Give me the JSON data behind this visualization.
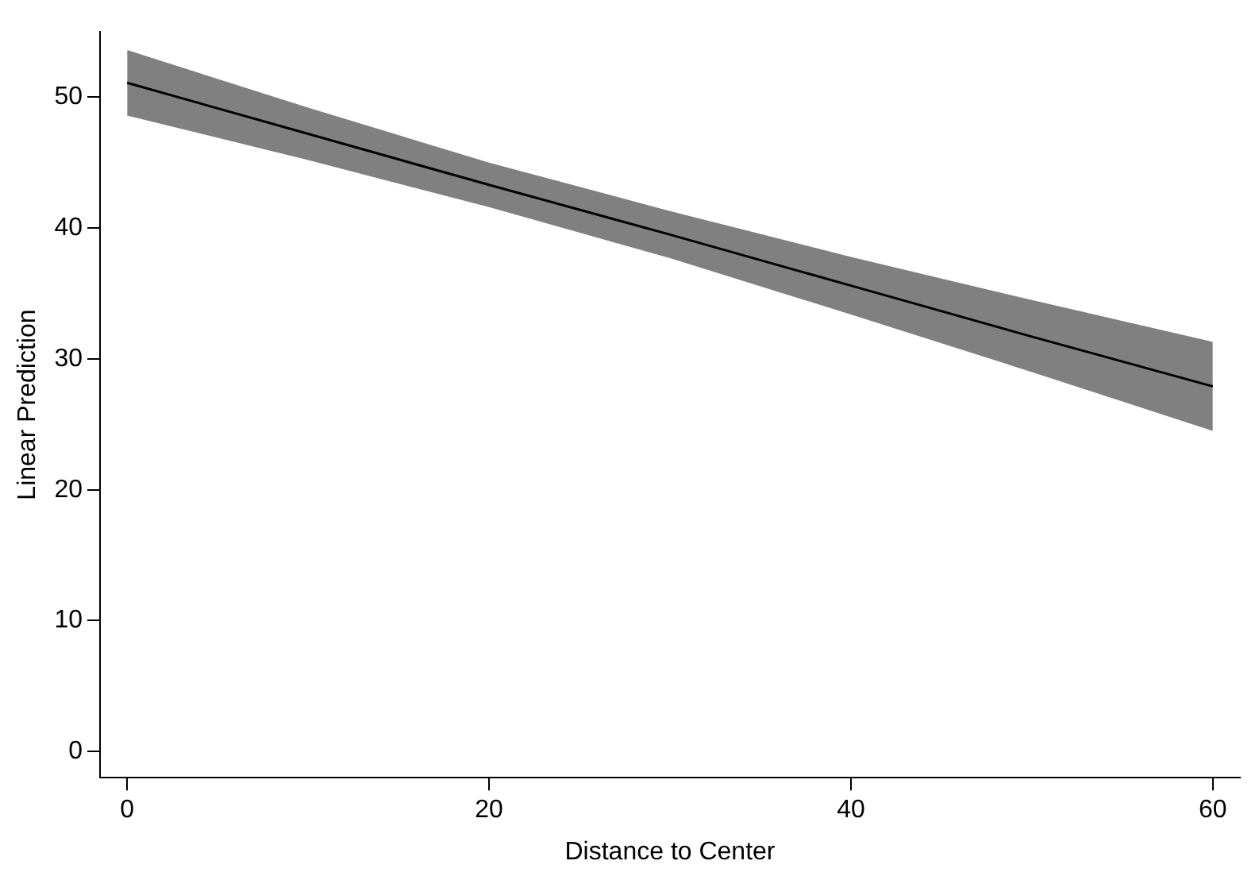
{
  "chart_data": {
    "type": "line",
    "xlabel": "Distance to Center",
    "ylabel": "Linear Prediction",
    "x": [
      0,
      10,
      20,
      30,
      40,
      50,
      60
    ],
    "series": [
      {
        "color": "#000000",
        "values": [
          51.1,
          47.2,
          43.3,
          39.5,
          35.6,
          31.7,
          27.9
        ],
        "lower": [
          48.6,
          45.2,
          41.6,
          37.7,
          33.4,
          29.0,
          24.5
        ],
        "upper": [
          53.6,
          49.2,
          45.0,
          41.3,
          37.8,
          34.5,
          31.3
        ]
      }
    ],
    "xlim": [
      -1.5,
      61.5
    ],
    "ylim": [
      -2,
      55
    ],
    "xticks": [
      0,
      20,
      40,
      60
    ],
    "yticks": [
      0,
      10,
      20,
      30,
      40,
      50
    ],
    "grid": false,
    "legend": false,
    "marker": "none",
    "line_style": "solid"
  }
}
